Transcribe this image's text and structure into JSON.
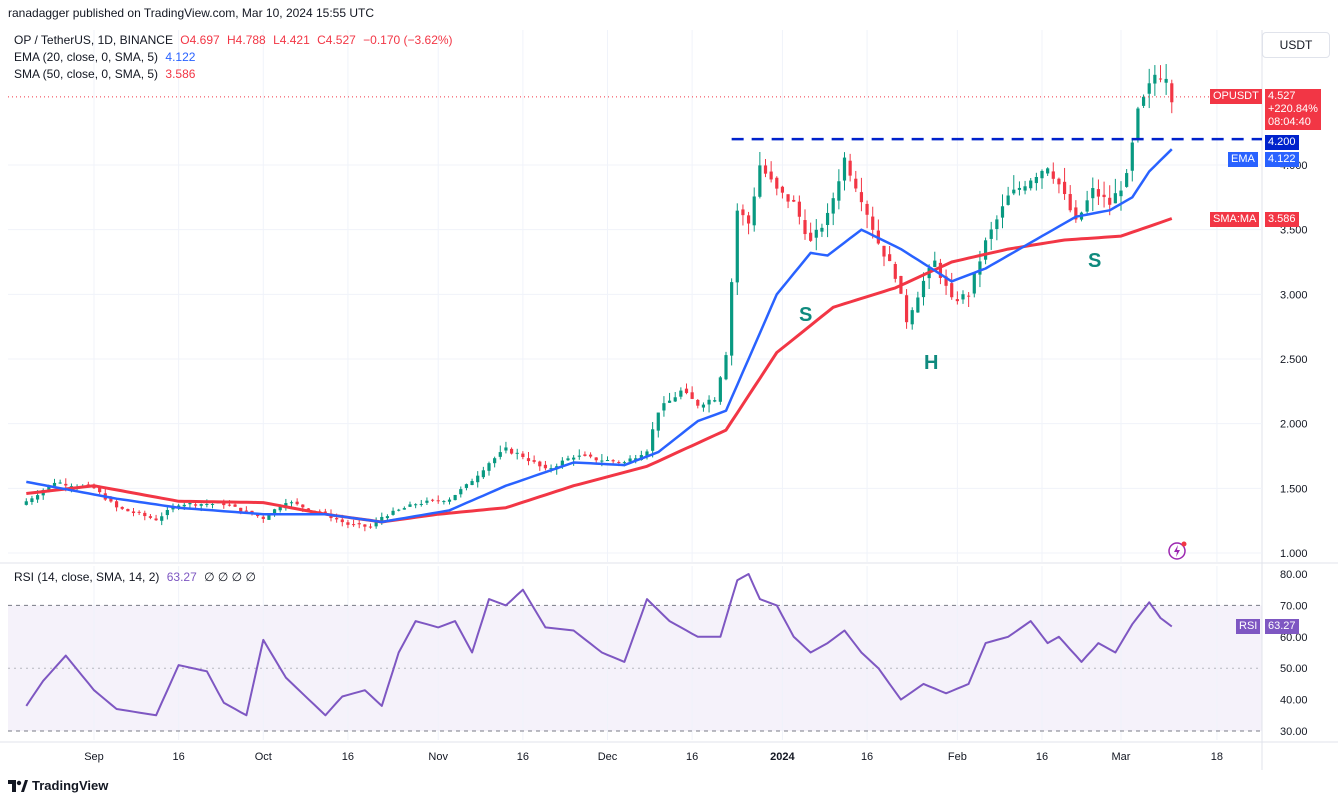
{
  "header": {
    "published": "ranadagger published on TradingView.com, Mar 10, 2024 15:55 UTC"
  },
  "legend": {
    "symbol": "OP / TetherUS, 1D, BINANCE",
    "ohlc": {
      "o": "O4.697",
      "h": "H4.788",
      "l": "L4.421",
      "c": "C4.527",
      "chg": "−0.170 (−3.62%)"
    },
    "ema_label": "EMA (20, close, 0, SMA, 5)",
    "ema_value": "4.122",
    "sma_label": "SMA (50, close, 0, SMA, 5)",
    "sma_value": "3.586",
    "rsi_label": "RSI (14, close, SMA, 14, 2)",
    "rsi_value": "63.27",
    "rsi_extra": "∅ ∅ ∅ ∅"
  },
  "currency_button": "USDT",
  "price_tags": {
    "opusdt_label": "OPUSDT",
    "opusdt_price": "4.527",
    "opusdt_change": "+220.84%",
    "opusdt_timer": "08:04:40",
    "level": "4.200",
    "ema_label": "EMA",
    "ema_value": "4.122",
    "sma_label": "SMA:MA",
    "sma_value": "3.586",
    "rsi_label": "RSI",
    "rsi_value": "63.27"
  },
  "pattern_labels": {
    "left_shoulder": "S",
    "head": "H",
    "right_shoulder": "S"
  },
  "footer": {
    "brand": "TradingView"
  },
  "colors": {
    "up": "#089981",
    "down": "#f23645",
    "ema": "#2962ff",
    "sma": "#f23645",
    "rsi": "#7e57c2",
    "neckline": "#0022cc",
    "pattern_text": "#0f8a7e"
  },
  "chart_data": [
    {
      "type": "candlestick",
      "title": "OP / TetherUS, 1D, BINANCE",
      "x_tick_labels": [
        "Sep",
        "16",
        "Oct",
        "16",
        "Nov",
        "16",
        "Dec",
        "16",
        "2024",
        "16",
        "Feb",
        "16",
        "Mar",
        "18"
      ],
      "y_tick_labels": [
        "1.000",
        "1.500",
        "2.000",
        "2.500",
        "3.000",
        "3.500",
        "4.000"
      ],
      "ylim": [
        0.95,
        4.95
      ],
      "grid": true,
      "price_anchors": [
        [
          "2023-08-20",
          1.4
        ],
        [
          "2023-08-25",
          1.55
        ],
        [
          "2023-09-01",
          1.5
        ],
        [
          "2023-09-05",
          1.35
        ],
        [
          "2023-09-12",
          1.26
        ],
        [
          "2023-09-16",
          1.38
        ],
        [
          "2023-09-24",
          1.38
        ],
        [
          "2023-10-01",
          1.27
        ],
        [
          "2023-10-05",
          1.4
        ],
        [
          "2023-10-12",
          1.3
        ],
        [
          "2023-10-16",
          1.22
        ],
        [
          "2023-10-20",
          1.2
        ],
        [
          "2023-10-22",
          1.28
        ],
        [
          "2023-10-28",
          1.38
        ],
        [
          "2023-11-03",
          1.42
        ],
        [
          "2023-11-06",
          1.52
        ],
        [
          "2023-11-10",
          1.7
        ],
        [
          "2023-11-13",
          1.8
        ],
        [
          "2023-11-16",
          1.75
        ],
        [
          "2023-11-20",
          1.64
        ],
        [
          "2023-11-25",
          1.75
        ],
        [
          "2023-11-30",
          1.72
        ],
        [
          "2023-12-04",
          1.7
        ],
        [
          "2023-12-08",
          1.8
        ],
        [
          "2023-12-10",
          2.1
        ],
        [
          "2023-12-14",
          2.25
        ],
        [
          "2023-12-17",
          2.15
        ],
        [
          "2023-12-20",
          2.2
        ],
        [
          "2023-12-22",
          2.55
        ],
        [
          "2023-12-24",
          3.65
        ],
        [
          "2023-12-26",
          3.55
        ],
        [
          "2023-12-28",
          4.0
        ],
        [
          "2023-12-31",
          3.8
        ],
        [
          "2024-01-03",
          3.7
        ],
        [
          "2024-01-06",
          3.4
        ],
        [
          "2024-01-09",
          3.6
        ],
        [
          "2024-01-12",
          4.05
        ],
        [
          "2024-01-15",
          3.75
        ],
        [
          "2024-01-18",
          3.4
        ],
        [
          "2024-01-21",
          3.15
        ],
        [
          "2024-01-23",
          2.8
        ],
        [
          "2024-01-26",
          3.1
        ],
        [
          "2024-01-28",
          3.25
        ],
        [
          "2024-01-31",
          2.95
        ],
        [
          "2024-02-03",
          3.0
        ],
        [
          "2024-02-06",
          3.4
        ],
        [
          "2024-02-10",
          3.75
        ],
        [
          "2024-02-14",
          3.9
        ],
        [
          "2024-02-17",
          4.0
        ],
        [
          "2024-02-19",
          3.85
        ],
        [
          "2024-02-22",
          3.55
        ],
        [
          "2024-02-25",
          3.8
        ],
        [
          "2024-02-28",
          3.7
        ],
        [
          "2024-03-02",
          3.9
        ],
        [
          "2024-03-04",
          4.4
        ],
        [
          "2024-03-07",
          4.7
        ],
        [
          "2024-03-09",
          4.7
        ],
        [
          "2024-03-10",
          4.53
        ]
      ],
      "ema20_anchors": [
        [
          "2023-08-20",
          1.55
        ],
        [
          "2023-09-05",
          1.42
        ],
        [
          "2023-09-16",
          1.35
        ],
        [
          "2023-10-01",
          1.3
        ],
        [
          "2023-10-12",
          1.3
        ],
        [
          "2023-10-22",
          1.24
        ],
        [
          "2023-11-03",
          1.33
        ],
        [
          "2023-11-13",
          1.52
        ],
        [
          "2023-11-25",
          1.7
        ],
        [
          "2023-12-04",
          1.68
        ],
        [
          "2023-12-10",
          1.78
        ],
        [
          "2023-12-17",
          2.02
        ],
        [
          "2023-12-22",
          2.1
        ],
        [
          "2023-12-31",
          3.0
        ],
        [
          "2024-01-06",
          3.32
        ],
        [
          "2024-01-09",
          3.3
        ],
        [
          "2024-01-15",
          3.5
        ],
        [
          "2024-01-22",
          3.35
        ],
        [
          "2024-01-31",
          3.1
        ],
        [
          "2024-02-06",
          3.2
        ],
        [
          "2024-02-14",
          3.4
        ],
        [
          "2024-02-22",
          3.6
        ],
        [
          "2024-02-28",
          3.65
        ],
        [
          "2024-03-03",
          3.75
        ],
        [
          "2024-03-06",
          3.95
        ],
        [
          "2024-03-10",
          4.122
        ]
      ],
      "sma50_anchors": [
        [
          "2023-08-20",
          1.46
        ],
        [
          "2023-09-01",
          1.52
        ],
        [
          "2023-09-16",
          1.4
        ],
        [
          "2023-10-01",
          1.39
        ],
        [
          "2023-10-12",
          1.3
        ],
        [
          "2023-10-22",
          1.24
        ],
        [
          "2023-11-01",
          1.3
        ],
        [
          "2023-11-13",
          1.35
        ],
        [
          "2023-11-25",
          1.52
        ],
        [
          "2023-12-08",
          1.67
        ],
        [
          "2023-12-22",
          1.95
        ],
        [
          "2023-12-31",
          2.55
        ],
        [
          "2024-01-10",
          2.9
        ],
        [
          "2024-01-21",
          3.05
        ],
        [
          "2024-01-31",
          3.25
        ],
        [
          "2024-02-10",
          3.35
        ],
        [
          "2024-02-20",
          3.42
        ],
        [
          "2024-03-01",
          3.45
        ],
        [
          "2024-03-10",
          3.586
        ]
      ],
      "neckline": 4.2,
      "current_price": 4.527
    },
    {
      "type": "line",
      "title": "RSI (14, close, SMA, 14, 2)",
      "y_tick_labels": [
        "30.00",
        "40.00",
        "50.00",
        "60.00",
        "70.00",
        "80.00"
      ],
      "ylim": [
        27,
        82
      ],
      "bands": [
        30,
        70
      ],
      "rsi_anchors": [
        [
          "2023-08-20",
          38
        ],
        [
          "2023-08-23",
          46
        ],
        [
          "2023-08-27",
          54
        ],
        [
          "2023-09-01",
          43
        ],
        [
          "2023-09-05",
          37
        ],
        [
          "2023-09-12",
          35
        ],
        [
          "2023-09-16",
          51
        ],
        [
          "2023-09-21",
          49
        ],
        [
          "2023-09-24",
          39
        ],
        [
          "2023-09-28",
          35
        ],
        [
          "2023-10-01",
          59
        ],
        [
          "2023-10-05",
          47
        ],
        [
          "2023-10-12",
          35
        ],
        [
          "2023-10-15",
          41
        ],
        [
          "2023-10-19",
          43
        ],
        [
          "2023-10-22",
          38
        ],
        [
          "2023-10-25",
          55
        ],
        [
          "2023-10-28",
          65
        ],
        [
          "2023-11-01",
          63
        ],
        [
          "2023-11-04",
          65
        ],
        [
          "2023-11-07",
          55
        ],
        [
          "2023-11-10",
          72
        ],
        [
          "2023-11-13",
          70
        ],
        [
          "2023-11-16",
          75
        ],
        [
          "2023-11-20",
          63
        ],
        [
          "2023-11-25",
          62
        ],
        [
          "2023-11-30",
          55
        ],
        [
          "2023-12-04",
          52
        ],
        [
          "2023-12-08",
          72
        ],
        [
          "2023-12-12",
          65
        ],
        [
          "2023-12-17",
          60
        ],
        [
          "2023-12-21",
          60
        ],
        [
          "2023-12-24",
          78
        ],
        [
          "2023-12-26",
          80
        ],
        [
          "2023-12-28",
          72
        ],
        [
          "2023-12-31",
          70
        ],
        [
          "2024-01-03",
          60
        ],
        [
          "2024-01-06",
          55
        ],
        [
          "2024-01-09",
          58
        ],
        [
          "2024-01-12",
          62
        ],
        [
          "2024-01-15",
          55
        ],
        [
          "2024-01-18",
          50
        ],
        [
          "2024-01-22",
          40
        ],
        [
          "2024-01-26",
          45
        ],
        [
          "2024-01-30",
          42
        ],
        [
          "2024-02-03",
          45
        ],
        [
          "2024-02-06",
          58
        ],
        [
          "2024-02-10",
          60
        ],
        [
          "2024-02-14",
          65
        ],
        [
          "2024-02-17",
          58
        ],
        [
          "2024-02-19",
          60
        ],
        [
          "2024-02-23",
          52
        ],
        [
          "2024-02-26",
          58
        ],
        [
          "2024-02-29",
          55
        ],
        [
          "2024-03-03",
          64
        ],
        [
          "2024-03-06",
          71
        ],
        [
          "2024-03-08",
          66
        ],
        [
          "2024-03-10",
          63.27
        ]
      ]
    }
  ]
}
